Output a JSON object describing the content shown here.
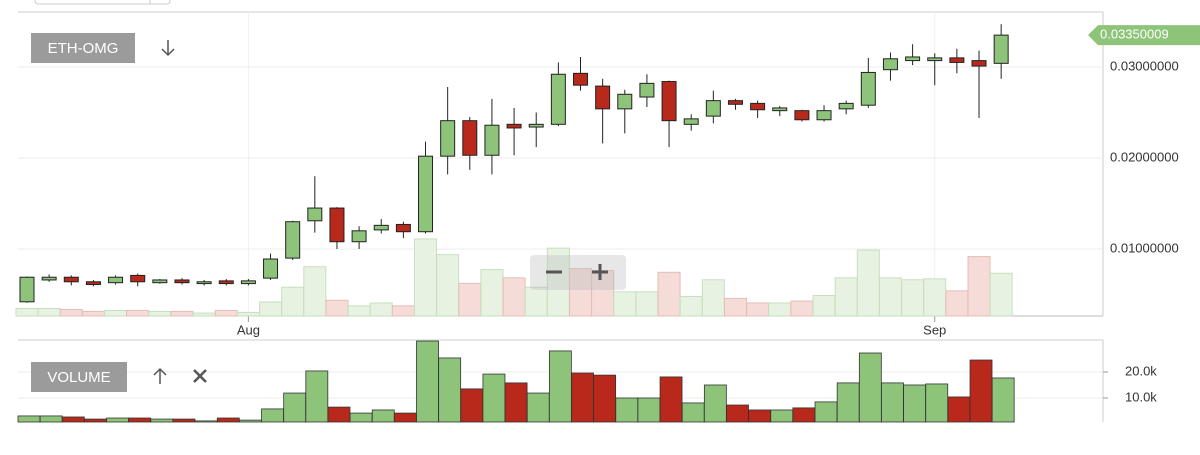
{
  "chart_data": [
    {
      "type": "candlestick",
      "title": "ETH-OMG",
      "categories": [
        null,
        null,
        null,
        null,
        null,
        null,
        null,
        null,
        null,
        null,
        "Aug",
        null,
        null,
        null,
        null,
        null,
        null,
        null,
        null,
        null,
        null,
        null,
        null,
        null,
        null,
        null,
        null,
        null,
        null,
        null,
        null,
        null,
        null,
        null,
        null,
        null,
        null,
        null,
        null,
        null,
        null,
        "Sep",
        null,
        null,
        null
      ],
      "open": [
        0.0042,
        0.0066,
        0.0069,
        0.0064,
        0.0063,
        0.0071,
        0.0063,
        0.0066,
        0.0062,
        0.0065,
        0.0062,
        0.0068,
        0.009,
        0.0131,
        0.0145,
        0.0108,
        0.0121,
        0.0127,
        0.0119,
        0.0202,
        0.0241,
        0.0203,
        0.0237,
        0.0234,
        0.0237,
        0.0293,
        0.0279,
        0.0254,
        0.0267,
        0.0284,
        0.0237,
        0.0246,
        0.0263,
        0.026,
        0.0252,
        0.0252,
        0.0242,
        0.0254,
        0.0258,
        0.0297,
        0.0307,
        0.0307,
        0.031,
        0.0307,
        0.0304
      ],
      "high": [
        0.007,
        0.0072,
        0.0071,
        0.0066,
        0.0071,
        0.0073,
        0.0067,
        0.0068,
        0.0066,
        0.0067,
        0.0067,
        0.0095,
        0.0131,
        0.018,
        0.0146,
        0.0125,
        0.0133,
        0.013,
        0.0218,
        0.0278,
        0.0245,
        0.0265,
        0.0255,
        0.025,
        0.0305,
        0.0311,
        0.0287,
        0.0275,
        0.0292,
        0.0285,
        0.0248,
        0.0274,
        0.0265,
        0.0263,
        0.0257,
        0.0253,
        0.0258,
        0.0263,
        0.031,
        0.0316,
        0.0325,
        0.0315,
        0.032,
        0.0318,
        0.0347
      ],
      "low": [
        0.0041,
        0.0064,
        0.006,
        0.0059,
        0.0061,
        0.0059,
        0.0062,
        0.0061,
        0.006,
        0.006,
        0.006,
        0.0066,
        0.0088,
        0.0118,
        0.01,
        0.01,
        0.0117,
        0.0112,
        0.0117,
        0.0182,
        0.0187,
        0.0182,
        0.0203,
        0.0212,
        0.0235,
        0.0274,
        0.0216,
        0.0227,
        0.0256,
        0.0212,
        0.023,
        0.0238,
        0.0253,
        0.0244,
        0.0246,
        0.024,
        0.024,
        0.0248,
        0.0255,
        0.0285,
        0.0302,
        0.028,
        0.0293,
        0.0244,
        0.0287
      ],
      "close": [
        0.0069,
        0.0069,
        0.0064,
        0.0061,
        0.0069,
        0.0064,
        0.0066,
        0.0063,
        0.0064,
        0.0062,
        0.0065,
        0.0089,
        0.013,
        0.0145,
        0.0108,
        0.012,
        0.0126,
        0.0119,
        0.0202,
        0.0241,
        0.0203,
        0.0236,
        0.0233,
        0.0237,
        0.0292,
        0.028,
        0.0254,
        0.027,
        0.0282,
        0.0241,
        0.0243,
        0.0263,
        0.0259,
        0.0253,
        0.0255,
        0.0242,
        0.0252,
        0.026,
        0.0294,
        0.0309,
        0.0311,
        0.031,
        0.0305,
        0.0301,
        0.03350009
      ],
      "last_price_label": "0.03350009",
      "up_color": "#8dc47a",
      "down_color": "#b8291b",
      "ylim": [
        0.00264,
        0.03604
      ],
      "yticks": [
        {
          "value": 0.01,
          "label": "0.01000000"
        },
        {
          "value": 0.02,
          "label": "0.02000000"
        },
        {
          "value": 0.03,
          "label": "0.03000000"
        }
      ],
      "grid": true
    },
    {
      "type": "bar",
      "title": "VOLUME",
      "values": [
        3100,
        3100,
        2700,
        1900,
        2300,
        2300,
        1900,
        1900,
        1200,
        2300,
        1500,
        5800,
        11900,
        20400,
        6500,
        4200,
        5400,
        4200,
        31900,
        25400,
        13500,
        19200,
        15800,
        11900,
        28100,
        19600,
        18800,
        10000,
        10000,
        18100,
        8100,
        15000,
        7300,
        5400,
        5400,
        6200,
        8500,
        15800,
        27300,
        15800,
        15000,
        15400,
        10400,
        24600,
        17700
      ],
      "ylim": [
        770,
        32300
      ],
      "yticks": [
        {
          "value": 10000,
          "label": "10.0k"
        },
        {
          "value": 20000,
          "label": "20.0k"
        }
      ]
    }
  ]
}
